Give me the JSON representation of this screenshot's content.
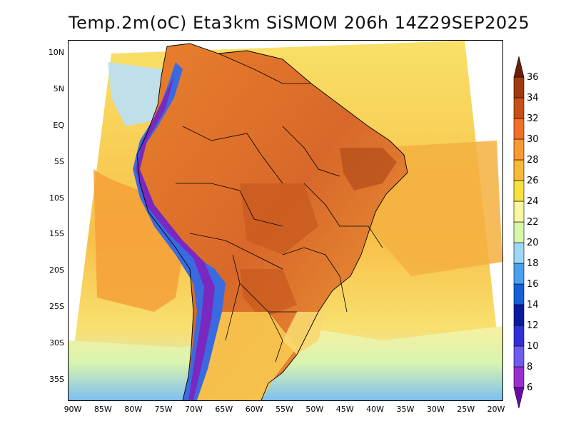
{
  "title": "Temp.2m(oC) Eta3km SiSMOM 206h 14Z29SEP2025",
  "y_axis": {
    "labels": [
      "10N",
      "5N",
      "EQ",
      "5S",
      "10S",
      "15S",
      "20S",
      "25S",
      "30S",
      "35S"
    ],
    "lat_values": [
      10,
      5,
      0,
      -5,
      -10,
      -15,
      -20,
      -25,
      -30,
      -35
    ]
  },
  "x_axis": {
    "labels": [
      "90W",
      "85W",
      "80W",
      "75W",
      "70W",
      "65W",
      "60W",
      "55W",
      "50W",
      "45W",
      "40W",
      "35W",
      "30W",
      "25W",
      "20W"
    ],
    "lon_values": [
      -90,
      -85,
      -80,
      -75,
      -70,
      -65,
      -60,
      -55,
      -50,
      -45,
      -40,
      -35,
      -30,
      -25,
      -20
    ]
  },
  "colorbar": {
    "labels": [
      "6",
      "8",
      "10",
      "12",
      "14",
      "16",
      "18",
      "20",
      "22",
      "24",
      "26",
      "28",
      "30",
      "32",
      "34",
      "36"
    ],
    "colors": [
      "#6a0aa8",
      "#9a2fd0",
      "#6e5cf0",
      "#3030d8",
      "#0a1aa0",
      "#1560d8",
      "#4aa0f0",
      "#9cd8f8",
      "#d8f8a8",
      "#f8f8a0",
      "#f8e040",
      "#f8b838",
      "#f89a30",
      "#f07028",
      "#c85018",
      "#a03a10",
      "#6a2008"
    ]
  },
  "colors": {
    "ocean_warm": "#f8c040",
    "ocean_mid": "#f8e068",
    "ocean_cool": "#d0f0a0",
    "land_hot": "#e87828",
    "land_very_hot": "#c85a20",
    "andes_cold": "#8030c0",
    "borders": "#000000"
  }
}
